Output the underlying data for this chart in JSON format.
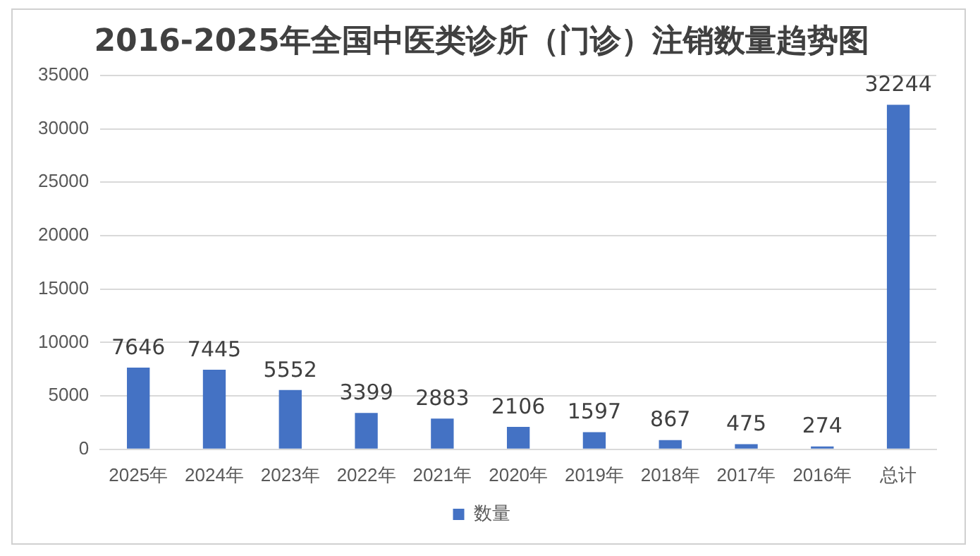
{
  "chart_data": {
    "type": "bar",
    "title": "2016-2025年全国中医类诊所（门诊）注销数量趋势图",
    "categories": [
      "2025年",
      "2024年",
      "2023年",
      "2022年",
      "2021年",
      "2020年",
      "2019年",
      "2018年",
      "2017年",
      "2016年",
      "总计"
    ],
    "series": [
      {
        "name": "数量",
        "color": "#4472c4",
        "values": [
          7646,
          7445,
          5552,
          3399,
          2883,
          2106,
          1597,
          867,
          475,
          274,
          32244
        ]
      }
    ],
    "ylim": [
      0,
      35000
    ],
    "yticks": [
      0,
      5000,
      10000,
      15000,
      20000,
      25000,
      30000,
      35000
    ],
    "grid": "y",
    "legend": "bottom",
    "data_labels": true
  }
}
